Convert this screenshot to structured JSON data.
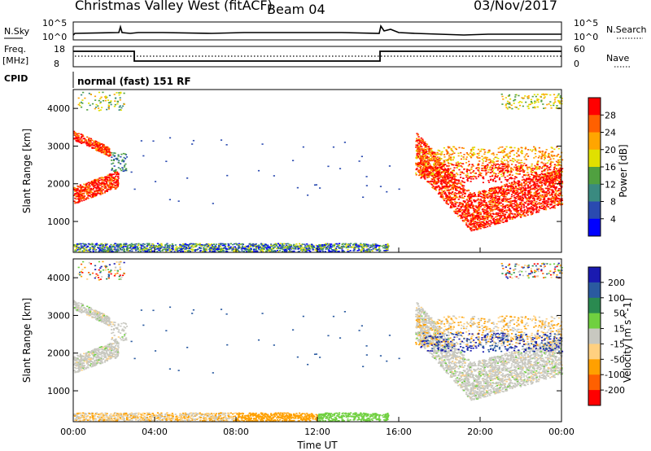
{
  "header": {
    "station": "Christmas Valley West (fitACF)",
    "beam": "Beam 04",
    "date": "03/Nov/2017"
  },
  "panels": {
    "nsky_label": "N.Sky",
    "nsearch_label": "N.Search",
    "freq_label_1": "Freq.",
    "freq_label_2": "[MHz]",
    "nave_label": "Nave",
    "cpid_label": "CPID",
    "cpid_value": "normal (fast) 151 RF",
    "noise_ticks": [
      "10^5",
      "10^0"
    ],
    "noise_ticks_right": [
      "10^5",
      "10^0"
    ],
    "freq_ticks": [
      "18",
      "8"
    ],
    "nave_ticks": [
      "60",
      "0"
    ]
  },
  "chart_data": [
    {
      "type": "heatmap",
      "name": "power",
      "ylabel": "Slant Range [km]",
      "yticks": [
        "4000",
        "3000",
        "2000",
        "1000"
      ],
      "ylim": [
        180,
        4500
      ],
      "colorbar_label": "Power [dB]",
      "colorbar_ticks": [
        "28",
        "24",
        "20",
        "16",
        "12",
        "8",
        "4"
      ],
      "colorbar_colors": [
        "#ff0000",
        "#ff6000",
        "#ffa500",
        "#e0e000",
        "#50a040",
        "#3a8a80",
        "#2a4ab0",
        "#0000ff"
      ]
    },
    {
      "type": "heatmap",
      "name": "velocity",
      "ylabel": "Slant Range [km]",
      "yticks": [
        "4000",
        "3000",
        "2000",
        "1000"
      ],
      "ylim": [
        180,
        4500
      ],
      "colorbar_label": "Velocity [m s^-1]",
      "colorbar_ticks": [
        "200",
        "100",
        "50",
        "15",
        "-15",
        "-50",
        "-100",
        "-200"
      ],
      "colorbar_colors": [
        "#1a1ab0",
        "#2a5aa0",
        "#2a8a50",
        "#70d040",
        "#c8c8c0",
        "#ffd080",
        "#ffa000",
        "#ff6000",
        "#ff0000"
      ],
      "xlabel": "Time UT",
      "xticks": [
        "00:00",
        "04:00",
        "08:00",
        "12:00",
        "16:00",
        "20:00",
        "00:00"
      ],
      "xlim": [
        0,
        24
      ]
    }
  ]
}
